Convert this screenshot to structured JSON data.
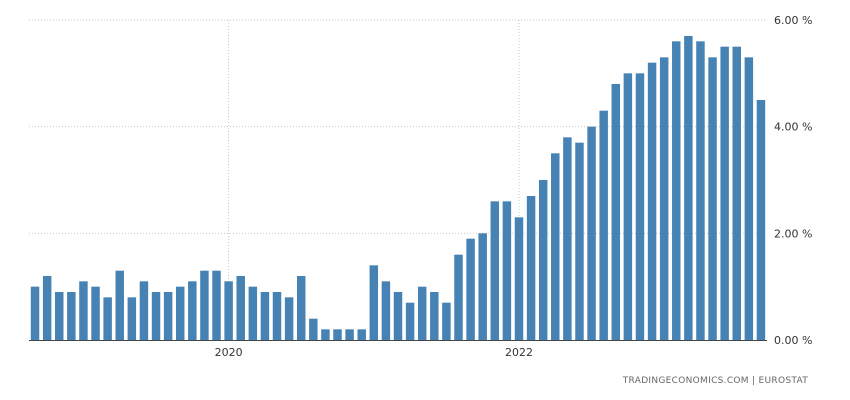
{
  "chart_data": {
    "type": "bar",
    "title": "",
    "xlabel": "",
    "ylabel": "",
    "ylim": [
      0,
      6
    ],
    "y_ticks": [
      {
        "value": 0,
        "label": "0.00 %"
      },
      {
        "value": 2,
        "label": "2.00 %"
      },
      {
        "value": 4,
        "label": "4.00 %"
      },
      {
        "value": 6,
        "label": "6.00 %"
      }
    ],
    "x_ticks": [
      {
        "index": 16.5,
        "label": "2020"
      },
      {
        "index": 40.5,
        "label": "2022"
      }
    ],
    "grid": true,
    "bar_color": "#4682b4",
    "grid_color": "#c8c8c8",
    "values": [
      1.0,
      1.2,
      0.9,
      0.9,
      1.1,
      1.0,
      0.8,
      1.3,
      0.8,
      1.1,
      0.9,
      0.9,
      1.0,
      1.1,
      1.3,
      1.3,
      1.1,
      1.2,
      1.0,
      0.9,
      0.9,
      0.8,
      1.2,
      0.4,
      0.2,
      0.2,
      0.2,
      0.2,
      1.4,
      1.1,
      0.9,
      0.7,
      1.0,
      0.9,
      0.7,
      1.6,
      1.9,
      2.0,
      2.6,
      2.6,
      2.3,
      2.7,
      3.0,
      3.5,
      3.8,
      3.7,
      4.0,
      4.3,
      4.8,
      5.0,
      5.0,
      5.2,
      5.3,
      5.6,
      5.7,
      5.6,
      5.3,
      5.5,
      5.5,
      5.3,
      4.5
    ]
  },
  "source_text": "TRADINGECONOMICS.COM  |  EUROSTAT"
}
